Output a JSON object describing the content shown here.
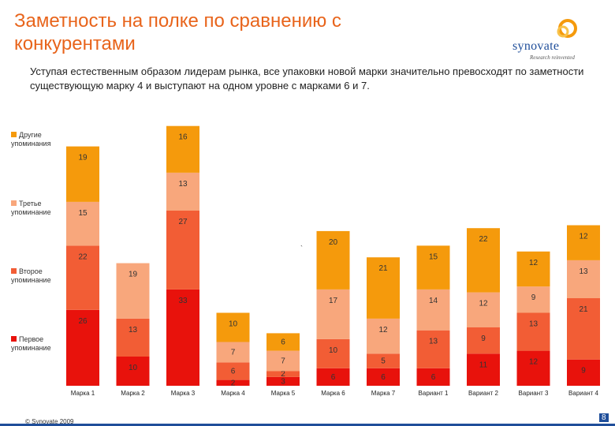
{
  "page": {
    "title": "Заметность на полке по сравнению с конкурентами",
    "subtitle": "Уступая естественным образом лидерам рынка, все упаковки новой марки значительно превосходят по заметности существующую марку 4 и выступают на одном уровне с марками 6 и 7.",
    "logo_word": "synovate",
    "logo_tagline": "Research reinvented",
    "footer": "© Synovate 2009",
    "page_number": "8"
  },
  "colors": {
    "title": "#e8641b",
    "first": "#e8120c",
    "second": "#f25d35",
    "third": "#f8a77c",
    "other": "#f59a0c"
  },
  "chart_data": {
    "type": "bar",
    "stacked": true,
    "categories": [
      "Марка 1",
      "Марка 2",
      "Марка 3",
      "Марка 4",
      "Марка 5",
      "Марка 6",
      "Марка 7",
      "Вариант 1",
      "Вариант 2",
      "Вариант 3",
      "Вариант 4"
    ],
    "series": [
      {
        "name": "Первое упоминание",
        "key": "first",
        "values": [
          26,
          10,
          33,
          2,
          3,
          6,
          6,
          6,
          11,
          12,
          9
        ]
      },
      {
        "name": "Второе упоминание",
        "key": "second",
        "values": [
          22,
          13,
          27,
          6,
          2,
          10,
          5,
          13,
          9,
          13,
          21
        ]
      },
      {
        "name": "Третье упоминание",
        "key": "third",
        "values": [
          15,
          19,
          13,
          7,
          7,
          17,
          12,
          14,
          12,
          9,
          13
        ]
      },
      {
        "name": "Другие упоминания",
        "key": "other",
        "values": [
          19,
          null,
          16,
          10,
          6,
          20,
          21,
          15,
          22,
          12,
          12
        ]
      }
    ],
    "legend_labels": {
      "other": "Другие упоминания",
      "third": "Третье упоминание",
      "second": "Второе упоминание",
      "first": "Первое упоминание"
    },
    "annotation": "`",
    "title": "",
    "xlabel": "",
    "ylabel": ""
  }
}
